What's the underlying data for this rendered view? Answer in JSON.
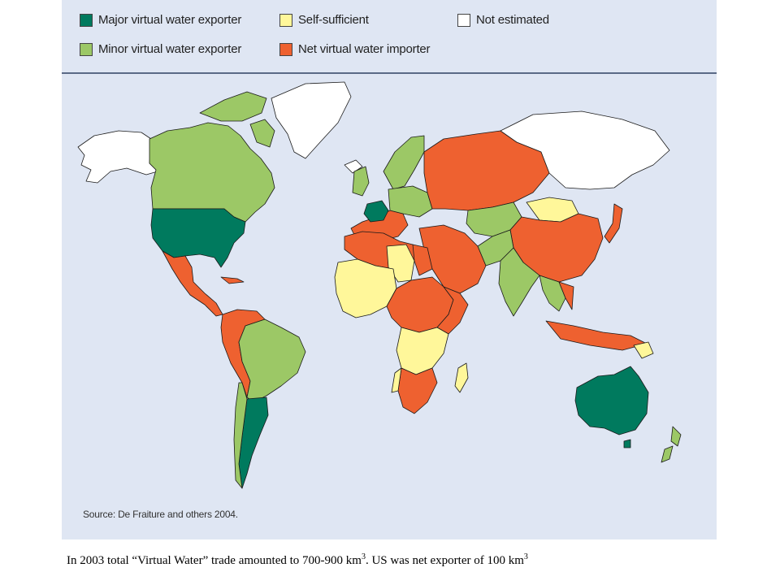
{
  "legend": {
    "items": [
      {
        "label": "Major virtual water exporter",
        "color": "#007a5e"
      },
      {
        "label": "Self-sufficient",
        "color": "#fff79a"
      },
      {
        "label": "Not estimated",
        "color": "#ffffff"
      },
      {
        "label": "Minor virtual water exporter",
        "color": "#9cc866"
      },
      {
        "label": "Net virtual water importer",
        "color": "#ee6130"
      }
    ]
  },
  "map": {
    "ocean_color": "#dfe6f3",
    "border_color": "#1a1a1a",
    "source": "Source: De Fraiture and others 2004."
  },
  "caption": {
    "text_1": "In 2003 total “Virtual Water” trade amounted to 700-900 km",
    "sup_1": "3",
    "text_2": ".  US was net exporter of 100 km",
    "sup_2": "3"
  }
}
